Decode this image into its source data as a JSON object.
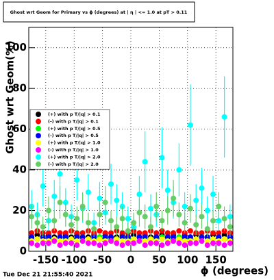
{
  "chart_data": {
    "type": "scatter",
    "title": "Ghost wrt Geom for Primary vs ϕ (degrees) at | η | <= 1.0 at pT > 0.11",
    "x_label": "ϕ (degrees)",
    "y_label": "Ghost wrt Geom(%)",
    "timestamp": "Tue Dec 21 21:55:40 2021",
    "xlim": [
      -180,
      180
    ],
    "ylim": [
      0,
      110
    ],
    "xticks": [
      -150,
      -100,
      -50,
      0,
      50,
      100,
      150
    ],
    "yticks": [
      0,
      20,
      40,
      60,
      80,
      100
    ],
    "grid": true,
    "legend": "left",
    "x": [
      -175,
      -165,
      -155,
      -145,
      -135,
      -125,
      -115,
      -105,
      -95,
      -85,
      -75,
      -65,
      -55,
      -45,
      -35,
      -25,
      -15,
      -5,
      5,
      15,
      25,
      35,
      45,
      55,
      65,
      75,
      85,
      95,
      105,
      115,
      125,
      135,
      145,
      155,
      165,
      175
    ],
    "series": [
      {
        "name": "(+) with p T/|q| > 0.1",
        "color": "#000000",
        "values": [
          7,
          8,
          7,
          8,
          7,
          7,
          8,
          7,
          8,
          7,
          7,
          8,
          7,
          8,
          7,
          7,
          8,
          7,
          8,
          7,
          8,
          7,
          7,
          8,
          7,
          8,
          7,
          8,
          7,
          8,
          7,
          7,
          8,
          7,
          8,
          7
        ]
      },
      {
        "name": "(-) with p T/|q| > 0.1",
        "color": "#ff0000",
        "values": [
          9,
          10,
          9,
          9,
          10,
          9,
          9,
          10,
          9,
          9,
          10,
          9,
          10,
          9,
          9,
          10,
          9,
          9,
          10,
          9,
          9,
          10,
          9,
          10,
          9,
          9,
          10,
          9,
          10,
          9,
          9,
          10,
          9,
          9,
          10,
          9
        ]
      },
      {
        "name": "(+) with p T/|q| > 0.5",
        "color": "#00ff00",
        "values": [
          6,
          6,
          7,
          6,
          6,
          7,
          6,
          6,
          6,
          7,
          6,
          6,
          7,
          6,
          6,
          6,
          7,
          6,
          6,
          7,
          6,
          6,
          6,
          7,
          6,
          6,
          7,
          6,
          6,
          6,
          7,
          6,
          6,
          7,
          6,
          6
        ]
      },
      {
        "name": "(-) with p T/|q| > 0.5",
        "color": "#0000ff",
        "values": [
          7,
          6,
          7,
          7,
          6,
          7,
          7,
          6,
          7,
          7,
          6,
          7,
          6,
          7,
          7,
          6,
          7,
          7,
          6,
          7,
          7,
          6,
          7,
          6,
          7,
          7,
          6,
          7,
          7,
          6,
          7,
          7,
          6,
          7,
          6,
          7
        ]
      },
      {
        "name": "(+) with p T/|q| > 1.0",
        "color": "#ffff00",
        "values": [
          5,
          6,
          5,
          5,
          6,
          5,
          5,
          6,
          5,
          5,
          6,
          5,
          6,
          5,
          5,
          6,
          5,
          5,
          6,
          5,
          5,
          6,
          5,
          6,
          5,
          5,
          6,
          5,
          5,
          6,
          5,
          5,
          6,
          5,
          6,
          5
        ]
      },
      {
        "name": "(-) with p T/|q| > 1.0",
        "color": "#ff00ff",
        "values": [
          4,
          3,
          4,
          4,
          5,
          3,
          4,
          4,
          3,
          5,
          4,
          4,
          3,
          4,
          5,
          4,
          3,
          4,
          4,
          5,
          3,
          4,
          4,
          3,
          4,
          5,
          4,
          3,
          4,
          4,
          5,
          3,
          4,
          4,
          3,
          4
        ]
      },
      {
        "name": "(+) with p T/|q| > 2.0",
        "color": "#00ffff",
        "values": [
          22,
          18,
          32,
          15,
          27,
          38,
          24,
          17,
          35,
          21,
          29,
          14,
          26,
          19,
          33,
          25,
          22,
          16,
          12,
          28,
          44,
          21,
          18,
          46,
          30,
          24,
          40,
          22,
          62,
          25,
          31,
          20,
          28,
          15,
          66,
          17
        ],
        "errors": [
          8,
          6,
          10,
          5,
          8,
          12,
          7,
          6,
          10,
          7,
          9,
          5,
          8,
          6,
          10,
          8,
          7,
          6,
          5,
          9,
          15,
          7,
          6,
          15,
          10,
          8,
          13,
          7,
          20,
          8,
          10,
          7,
          9,
          5,
          20,
          6
        ]
      },
      {
        "name": "(-) with p T/|q| > 2.0",
        "color": "#66cc66",
        "values": [
          17,
          14,
          12,
          20,
          15,
          24,
          18,
          13,
          16,
          22,
          14,
          11,
          18,
          24,
          15,
          12,
          16,
          10,
          14,
          19,
          17,
          12,
          22,
          15,
          20,
          26,
          18,
          14,
          21,
          13,
          17,
          11,
          15,
          22,
          16,
          12
        ],
        "errors": [
          6,
          5,
          5,
          7,
          5,
          8,
          6,
          5,
          6,
          7,
          5,
          4,
          6,
          8,
          5,
          5,
          6,
          4,
          5,
          7,
          6,
          5,
          7,
          5,
          7,
          9,
          6,
          5,
          7,
          5,
          6,
          4,
          5,
          7,
          6,
          5
        ]
      }
    ]
  }
}
